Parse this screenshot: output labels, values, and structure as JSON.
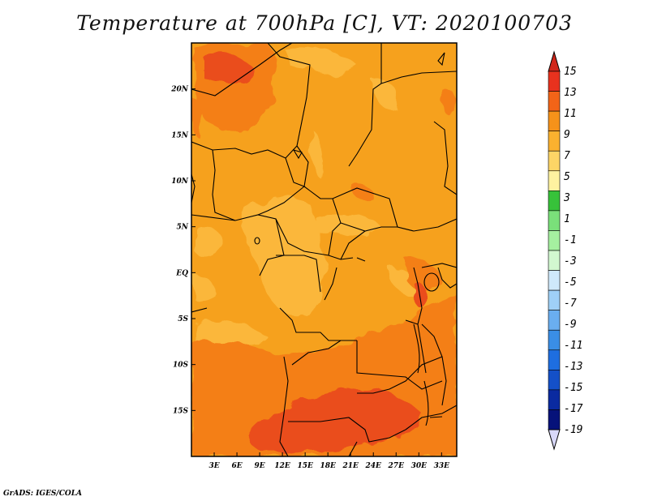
{
  "title": "Temperature at 700hPa [C], VT: 2020100703",
  "credit": "GrADS: IGES/COLA",
  "map": {
    "lon_range": [
      0,
      35
    ],
    "lat_range": [
      -20,
      25
    ],
    "x_ticks": [
      "3E",
      "6E",
      "9E",
      "12E",
      "15E",
      "18E",
      "21E",
      "24E",
      "27E",
      "30E",
      "33E"
    ],
    "y_ticks": [
      "20N",
      "15N",
      "10N",
      "5N",
      "EQ",
      "5S",
      "10S",
      "15S"
    ]
  },
  "colorbar": {
    "labels": [
      "15",
      "13",
      "11",
      "9",
      "7",
      "5",
      "3",
      "1",
      "-1",
      "-3",
      "-5",
      "-7",
      "-9",
      "-11",
      "-13",
      "-15",
      "-17",
      "-19"
    ],
    "colors": [
      "#e8321e",
      "#f26418",
      "#f6921a",
      "#fbb12f",
      "#fdd566",
      "#fef2a0",
      "#37c23a",
      "#7ae07a",
      "#a5f0a0",
      "#d2f8d0",
      "#cfe9fb",
      "#9fd0f7",
      "#6aaef0",
      "#3a8ee6",
      "#1e6ee0",
      "#1450c8",
      "#0a2aa0",
      "#06127a"
    ],
    "over_color": "#d1261a",
    "under_color": "#d8d8f8"
  }
}
